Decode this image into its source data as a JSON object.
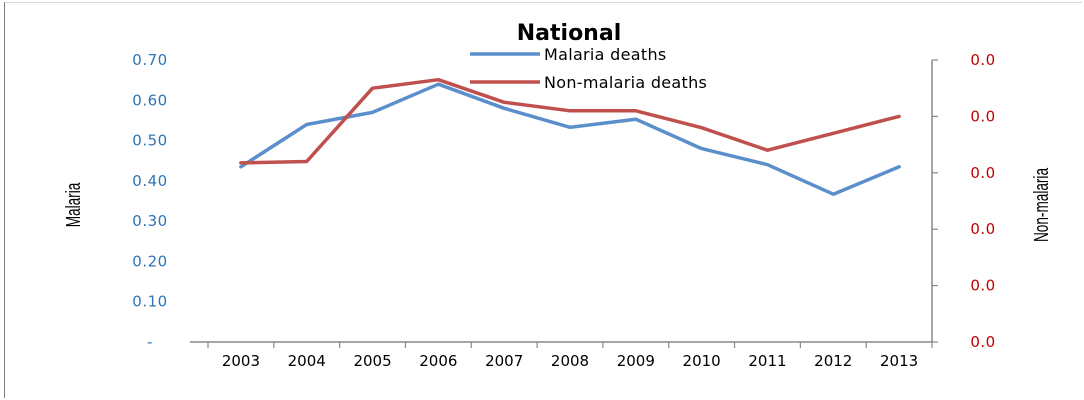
{
  "chart_data": {
    "type": "line",
    "title": "National",
    "ylabel_left": "Malaria",
    "ylabel_right": "Non-malaria",
    "categories": [
      "2003",
      "2004",
      "2005",
      "2006",
      "2007",
      "2008",
      "2009",
      "2010",
      "2011",
      "2012",
      "2013"
    ],
    "y_left_ticks": [
      "-",
      "0.10",
      "0.20",
      "0.30",
      "0.40",
      "0.50",
      "0.60",
      "0.70"
    ],
    "y_left_range": [
      0,
      0.7
    ],
    "y_right_ticks": [
      "0.0",
      "0.0",
      "0.0",
      "0.0",
      "0.0",
      "0.0"
    ],
    "y_right_range": [
      0,
      1
    ],
    "legend_position": "top-center",
    "grid": false,
    "series": [
      {
        "name": "Malaria deaths",
        "axis": "left",
        "color": "#5b8fcb",
        "values": [
          0.435,
          0.54,
          0.57,
          0.64,
          0.58,
          0.533,
          0.553,
          0.48,
          0.44,
          0.367,
          0.435
        ]
      },
      {
        "name": "Non-malaria deaths",
        "axis": "right",
        "color": "#c0504d",
        "values": [
          0.635,
          0.64,
          0.9,
          0.93,
          0.85,
          0.82,
          0.82,
          0.76,
          0.68,
          0.74,
          0.8
        ]
      }
    ]
  }
}
